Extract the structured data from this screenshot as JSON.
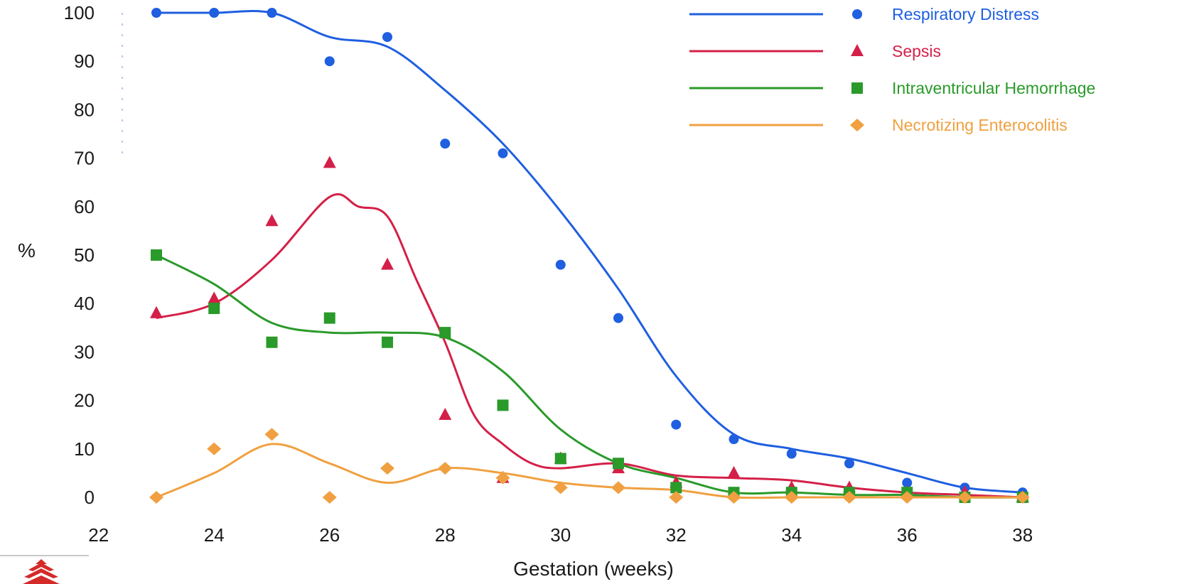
{
  "chart_data": {
    "type": "scatter",
    "title": "",
    "xlabel": "Gestation (weeks)",
    "ylabel": "%",
    "xlim": [
      22,
      38
    ],
    "ylim": [
      0,
      100
    ],
    "x_ticks": [
      22,
      24,
      26,
      28,
      30,
      32,
      34,
      36,
      38
    ],
    "y_ticks": [
      0,
      10,
      20,
      30,
      40,
      50,
      60,
      70,
      80,
      90,
      100
    ],
    "grid": false,
    "legend_position": "top-right",
    "series": [
      {
        "name": "Respiratory Distress",
        "color": "#1f5fe0",
        "marker": "circle",
        "points": [
          [
            23,
            100
          ],
          [
            24,
            100
          ],
          [
            25,
            100
          ],
          [
            26,
            90
          ],
          [
            27,
            95
          ],
          [
            28,
            73
          ],
          [
            29,
            71
          ],
          [
            30,
            48
          ],
          [
            31,
            37
          ],
          [
            32,
            15
          ],
          [
            33,
            12
          ],
          [
            34,
            9
          ],
          [
            35,
            7
          ],
          [
            36,
            3
          ],
          [
            37,
            2
          ],
          [
            38,
            1
          ]
        ],
        "curve": [
          [
            23,
            100
          ],
          [
            24,
            100
          ],
          [
            25,
            100
          ],
          [
            26,
            95
          ],
          [
            27,
            93
          ],
          [
            28,
            84
          ],
          [
            29,
            73
          ],
          [
            30,
            59
          ],
          [
            31,
            43
          ],
          [
            32,
            25
          ],
          [
            33,
            13
          ],
          [
            34,
            10
          ],
          [
            35,
            8
          ],
          [
            36,
            5
          ],
          [
            37,
            2
          ],
          [
            38,
            1
          ]
        ]
      },
      {
        "name": "Sepsis",
        "color": "#d42048",
        "marker": "triangle",
        "points": [
          [
            23,
            38
          ],
          [
            24,
            41
          ],
          [
            25,
            57
          ],
          [
            26,
            69
          ],
          [
            27,
            48
          ],
          [
            28,
            17
          ],
          [
            29,
            4
          ],
          [
            30,
            8
          ],
          [
            31,
            6
          ],
          [
            32,
            3
          ],
          [
            33,
            5
          ],
          [
            34,
            2
          ],
          [
            35,
            2
          ],
          [
            36,
            1
          ],
          [
            37,
            1
          ],
          [
            38,
            0
          ]
        ],
        "curve": [
          [
            23,
            37
          ],
          [
            24,
            40
          ],
          [
            25,
            49
          ],
          [
            26,
            62
          ],
          [
            26.5,
            60
          ],
          [
            27,
            58
          ],
          [
            27.5,
            45
          ],
          [
            28,
            32
          ],
          [
            28.5,
            17
          ],
          [
            29,
            11
          ],
          [
            29.5,
            7
          ],
          [
            30,
            6
          ],
          [
            31,
            7
          ],
          [
            32,
            4.5
          ],
          [
            33,
            4
          ],
          [
            34,
            3.5
          ],
          [
            35,
            2
          ],
          [
            36,
            1
          ],
          [
            37,
            0.5
          ],
          [
            38,
            0
          ]
        ]
      },
      {
        "name": "Intraventricular Hemorrhage",
        "color": "#2a9a2a",
        "marker": "square",
        "points": [
          [
            23,
            50
          ],
          [
            24,
            39
          ],
          [
            25,
            32
          ],
          [
            26,
            37
          ],
          [
            27,
            32
          ],
          [
            28,
            34
          ],
          [
            29,
            19
          ],
          [
            30,
            8
          ],
          [
            31,
            7
          ],
          [
            32,
            2
          ],
          [
            33,
            1
          ],
          [
            34,
            1
          ],
          [
            35,
            1
          ],
          [
            36,
            1
          ],
          [
            37,
            0
          ],
          [
            38,
            0
          ]
        ],
        "curve": [
          [
            23,
            50
          ],
          [
            24,
            44
          ],
          [
            25,
            36
          ],
          [
            26,
            34
          ],
          [
            27,
            34
          ],
          [
            28,
            33
          ],
          [
            29,
            26
          ],
          [
            30,
            14
          ],
          [
            31,
            7
          ],
          [
            32,
            4
          ],
          [
            33,
            1
          ],
          [
            34,
            1
          ],
          [
            35,
            0.5
          ],
          [
            36,
            0.5
          ],
          [
            37,
            0
          ],
          [
            38,
            0
          ]
        ]
      },
      {
        "name": "Necrotizing Enterocolitis",
        "color": "#f0a040",
        "marker": "diamond",
        "points": [
          [
            23,
            0
          ],
          [
            24,
            10
          ],
          [
            25,
            13
          ],
          [
            26,
            0
          ],
          [
            27,
            6
          ],
          [
            28,
            6
          ],
          [
            29,
            4
          ],
          [
            30,
            2
          ],
          [
            31,
            2
          ],
          [
            32,
            0
          ],
          [
            33,
            0
          ],
          [
            34,
            0
          ],
          [
            35,
            0
          ],
          [
            36,
            0
          ],
          [
            37,
            0
          ],
          [
            38,
            0
          ]
        ],
        "curve": [
          [
            23,
            0
          ],
          [
            24,
            5
          ],
          [
            25,
            11
          ],
          [
            26,
            7
          ],
          [
            27,
            3
          ],
          [
            28,
            6
          ],
          [
            29,
            5
          ],
          [
            30,
            3
          ],
          [
            31,
            2
          ],
          [
            32,
            1.5
          ],
          [
            33,
            0
          ],
          [
            34,
            0
          ],
          [
            35,
            0
          ],
          [
            36,
            0
          ],
          [
            37,
            0
          ],
          [
            38,
            0
          ]
        ]
      }
    ]
  }
}
